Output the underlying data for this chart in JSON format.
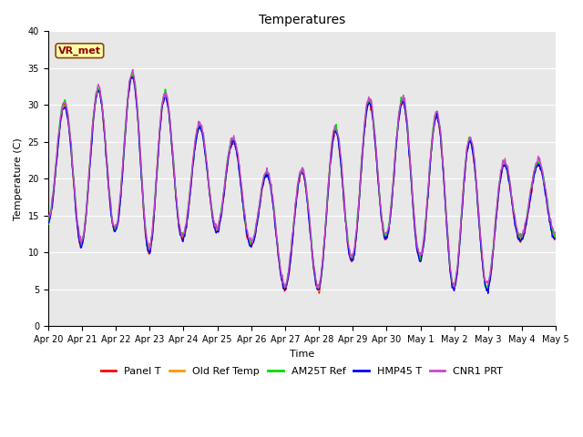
{
  "title": "Temperatures",
  "xlabel": "Time",
  "ylabel": "Temperature (C)",
  "ylim": [
    0,
    40
  ],
  "yticks": [
    0,
    5,
    10,
    15,
    20,
    25,
    30,
    35,
    40
  ],
  "xtick_labels": [
    "Apr 20",
    "Apr 21",
    "Apr 22",
    "Apr 23",
    "Apr 24",
    "Apr 25",
    "Apr 26",
    "Apr 27",
    "Apr 28",
    "Apr 29",
    "Apr 30",
    "May 1",
    "May 2",
    "May 3",
    "May 4",
    "May 5"
  ],
  "annotation_text": "VR_met",
  "legend_entries": [
    "Panel T",
    "Old Ref Temp",
    "AM25T Ref",
    "HMP45 T",
    "CNR1 PRT"
  ],
  "line_colors": [
    "#ff0000",
    "#ff9900",
    "#00dd00",
    "#0000ff",
    "#cc44cc"
  ],
  "line_widths": [
    1.0,
    1.0,
    1.2,
    1.0,
    1.0
  ],
  "bg_color": "#e8e8e8",
  "fig_bg_color": "#ffffff",
  "title_fontsize": 10,
  "tick_fontsize": 7,
  "axis_label_fontsize": 8,
  "legend_fontsize": 8,
  "n_days": 15,
  "pts_per_day": 48,
  "daily_max": [
    29,
    31,
    33,
    35,
    27,
    27,
    23,
    18,
    24,
    29,
    32,
    29,
    28,
    22,
    22,
    22
  ],
  "daily_min": [
    14,
    11,
    13,
    10,
    12,
    13,
    11,
    5,
    5,
    9,
    12,
    9,
    5,
    5,
    12,
    12
  ]
}
